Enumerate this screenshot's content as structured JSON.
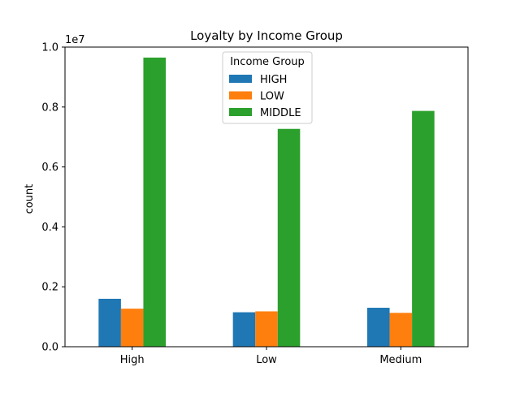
{
  "chart_data": {
    "type": "bar",
    "title": "Loyalty by Income Group",
    "xlabel": "",
    "ylabel": "count",
    "y_offset_label": "1e7",
    "categories": [
      "High",
      "Low",
      "Medium"
    ],
    "series": [
      {
        "name": "HIGH",
        "color": "#1f77b4",
        "values": [
          1600000,
          1150000,
          1300000
        ]
      },
      {
        "name": "LOW",
        "color": "#ff7f0e",
        "values": [
          1270000,
          1180000,
          1130000
        ]
      },
      {
        "name": "MIDDLE",
        "color": "#2ca02c",
        "values": [
          9650000,
          7270000,
          7870000
        ]
      }
    ],
    "ylim": [
      0,
      10000000
    ],
    "yticks": [
      0,
      2000000,
      4000000,
      6000000,
      8000000,
      10000000
    ],
    "ytick_labels": [
      "0.0",
      "0.2",
      "0.4",
      "0.6",
      "0.8",
      "1.0"
    ],
    "grid": false,
    "legend": {
      "title": "Income Group",
      "placement": "top-center"
    }
  }
}
